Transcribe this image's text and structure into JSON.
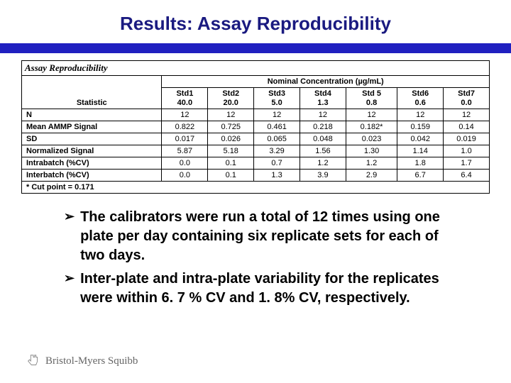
{
  "title": "Results: Assay Reproducibility",
  "title_color": "#1a1a80",
  "bar_color": "#2020c0",
  "table": {
    "caption": "Assay Reproducibility",
    "super_header": "Nominal Concentration (µg/mL)",
    "statistic_label": "Statistic",
    "columns": [
      {
        "name": "Std1",
        "conc": "40.0"
      },
      {
        "name": "Std2",
        "conc": "20.0"
      },
      {
        "name": "Std3",
        "conc": "5.0"
      },
      {
        "name": "Std4",
        "conc": "1.3"
      },
      {
        "name": "Std 5",
        "conc": "0.8"
      },
      {
        "name": "Std6",
        "conc": "0.6"
      },
      {
        "name": "Std7",
        "conc": "0.0"
      }
    ],
    "rows": [
      {
        "label": "N",
        "vals": [
          "12",
          "12",
          "12",
          "12",
          "12",
          "12",
          "12"
        ]
      },
      {
        "label": "Mean AMMP Signal",
        "vals": [
          "0.822",
          "0.725",
          "0.461",
          "0.218",
          "0.182*",
          "0.159",
          "0.14"
        ]
      },
      {
        "label": "SD",
        "vals": [
          "0.017",
          "0.026",
          "0.065",
          "0.048",
          "0.023",
          "0.042",
          "0.019"
        ]
      },
      {
        "label": "Normalized Signal",
        "vals": [
          "5.87",
          "5.18",
          "3.29",
          "1.56",
          "1.30",
          "1.14",
          "1.0"
        ]
      },
      {
        "label": "Intrabatch (%CV)",
        "vals": [
          "0.0",
          "0.1",
          "0.7",
          "1.2",
          "1.2",
          "1.8",
          "1.7"
        ]
      },
      {
        "label": "Interbatch (%CV)",
        "vals": [
          "0.0",
          "0.1",
          "1.3",
          "3.9",
          "2.9",
          "6.7",
          "6.4"
        ]
      }
    ],
    "footnote": "* Cut point = 0.171"
  },
  "bullets": [
    "The calibrators were run a total of 12 times using one plate per day containing six replicate  sets for each of two days.",
    " Inter-plate and intra-plate variability for the replicates were within 6. 7 % CV and 1. 8% CV, respectively."
  ],
  "logo_text": "Bristol-Myers Squibb"
}
